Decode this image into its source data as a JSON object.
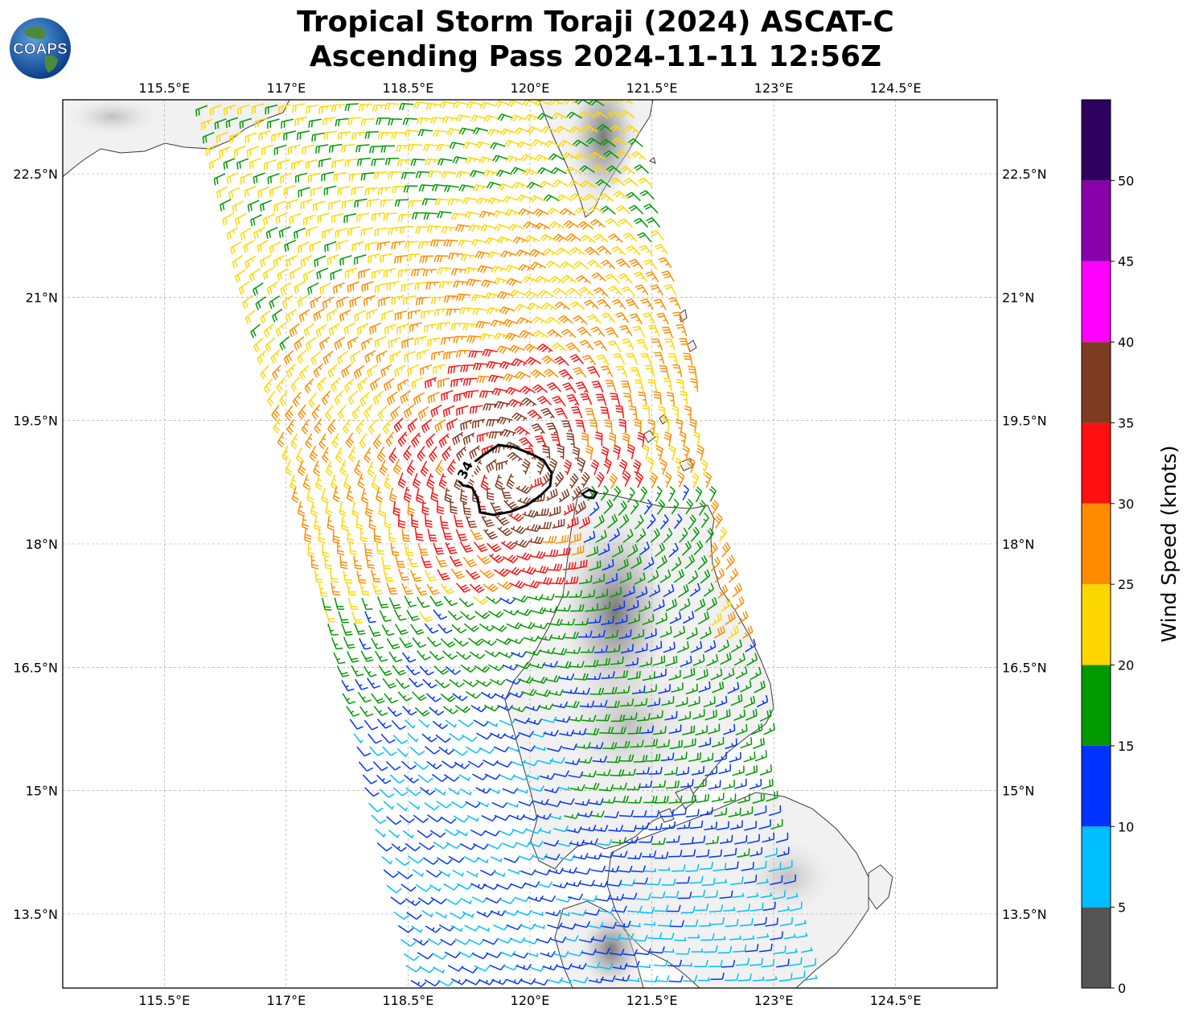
{
  "title": {
    "line1": "Tropical Storm Toraji (2024) ASCAT-C",
    "line2": "Ascending Pass 2024-11-11 12:56Z"
  },
  "logo": {
    "text": "COAPS",
    "icon": "earth-globe-logo"
  },
  "map": {
    "lon_range": [
      114.25,
      125.75
    ],
    "lat_range": [
      12.6,
      23.4
    ],
    "lon_ticks": [
      "115.5°E",
      "117°E",
      "118.5°E",
      "120°E",
      "121.5°E",
      "123°E",
      "124.5°E"
    ],
    "lat_ticks": [
      "22.5°N",
      "21°N",
      "19.5°N",
      "18°N",
      "16.5°N",
      "15°N",
      "13.5°N"
    ],
    "gridlines": true,
    "contour_label": "34",
    "contour_value_kt": 34
  },
  "colorbar": {
    "label": "Wind Speed (knots)",
    "ticks": [
      "0",
      "5",
      "10",
      "15",
      "20",
      "25",
      "30",
      "35",
      "40",
      "45",
      "50"
    ],
    "bins": [
      {
        "from": 0,
        "to": 5,
        "color": "#555555"
      },
      {
        "from": 5,
        "to": 10,
        "color": "#00bfff"
      },
      {
        "from": 10,
        "to": 15,
        "color": "#0033ff"
      },
      {
        "from": 15,
        "to": 20,
        "color": "#009900"
      },
      {
        "from": 20,
        "to": 25,
        "color": "#ffd700"
      },
      {
        "from": 25,
        "to": 30,
        "color": "#ff8c00"
      },
      {
        "from": 30,
        "to": 35,
        "color": "#ff1010"
      },
      {
        "from": 35,
        "to": 40,
        "color": "#7f3a22"
      },
      {
        "from": 40,
        "to": 45,
        "color": "#ff00ff"
      },
      {
        "from": 45,
        "to": 50,
        "color": "#8800aa"
      },
      {
        "from": 50,
        "to": 55,
        "color": "#2d0060"
      }
    ]
  },
  "storm_center": {
    "lon": 119.85,
    "lat": 18.85
  }
}
